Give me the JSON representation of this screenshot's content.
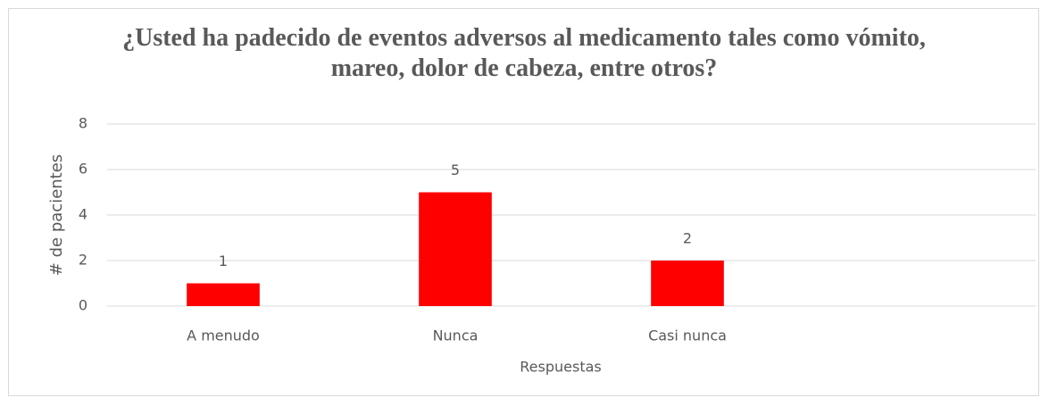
{
  "chart_data": {
    "type": "bar",
    "title": "¿Usted ha padecido de eventos adversos al medicamento tales como vómito, mareo, dolor de cabeza, entre otros?",
    "x_label": "Respuestas",
    "y_label": "# de pacientes",
    "categories": [
      "A menudo",
      "Nunca",
      "Casi nunca",
      null
    ],
    "values": [
      1,
      5,
      2,
      null
    ],
    "color": "#ff0000",
    "ylim": [
      0,
      8
    ],
    "yticks": [
      0,
      2,
      4,
      6,
      8
    ],
    "grid": true
  }
}
